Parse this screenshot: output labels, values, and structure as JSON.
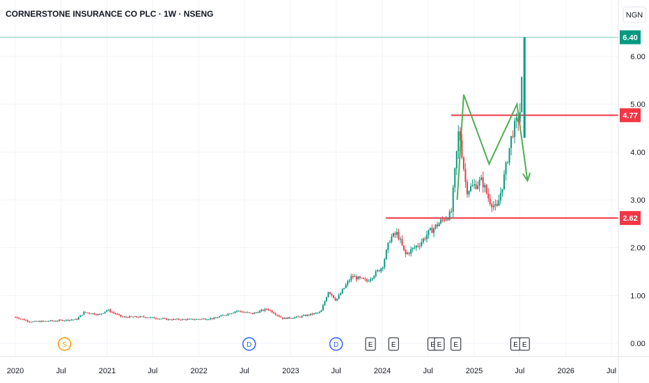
{
  "header": {
    "title": "CORNERSTONE INSURANCE CO PLC · 1W · NSENG",
    "currency": "NGN"
  },
  "colors": {
    "up": "#089981",
    "down": "#f23645",
    "line": "#f23645",
    "pattern": "#4caf50",
    "last_price": "#089981",
    "grid": "#f0f3fa"
  },
  "chart_data": {
    "type": "candlestick",
    "title": "CORNERSTONE INSURANCE CO PLC · 1W · NSENG",
    "y_axis": {
      "ticks": [
        "6.00",
        "5.00",
        "4.00",
        "3.00",
        "2.00",
        "1.00",
        "0.00"
      ],
      "min": -0.2,
      "max": 6.6
    },
    "x_axis": {
      "ticks": [
        "2020",
        "Jul",
        "2021",
        "Jul",
        "2022",
        "Jul",
        "2023",
        "Jul",
        "2024",
        "Jul",
        "2025",
        "Jul",
        "2026",
        "Jul"
      ],
      "start": "2020-01-01",
      "end": "2026-07-01"
    },
    "series_close_points": [
      [
        "2020-01-01",
        0.55
      ],
      [
        "2020-03-01",
        0.45
      ],
      [
        "2020-06-01",
        0.47
      ],
      [
        "2020-09-01",
        0.5
      ],
      [
        "2020-10-01",
        0.65
      ],
      [
        "2020-12-01",
        0.6
      ],
      [
        "2021-01-01",
        0.7
      ],
      [
        "2021-03-01",
        0.55
      ],
      [
        "2021-06-01",
        0.55
      ],
      [
        "2021-09-01",
        0.5
      ],
      [
        "2021-12-01",
        0.5
      ],
      [
        "2022-03-01",
        0.52
      ],
      [
        "2022-06-01",
        0.68
      ],
      [
        "2022-08-01",
        0.62
      ],
      [
        "2022-10-01",
        0.72
      ],
      [
        "2022-12-01",
        0.52
      ],
      [
        "2023-02-01",
        0.55
      ],
      [
        "2023-05-01",
        0.65
      ],
      [
        "2023-06-01",
        1.1
      ],
      [
        "2023-07-01",
        0.9
      ],
      [
        "2023-09-01",
        1.4
      ],
      [
        "2023-11-01",
        1.3
      ],
      [
        "2024-01-01",
        1.6
      ],
      [
        "2024-02-01",
        2.2
      ],
      [
        "2024-03-01",
        2.3
      ],
      [
        "2024-04-01",
        1.85
      ],
      [
        "2024-06-01",
        2.1
      ],
      [
        "2024-07-01",
        2.3
      ],
      [
        "2024-09-01",
        2.6
      ],
      [
        "2024-10-01",
        2.7
      ],
      [
        "2024-11-01",
        4.5
      ],
      [
        "2024-12-01",
        3.2
      ],
      [
        "2025-02-01",
        3.4
      ],
      [
        "2025-03-01",
        3.0
      ],
      [
        "2025-04-01",
        2.8
      ],
      [
        "2025-05-01",
        3.5
      ],
      [
        "2025-06-01",
        4.4
      ],
      [
        "2025-07-01",
        4.77
      ],
      [
        "2025-07-20",
        6.4
      ]
    ],
    "horizontal_levels": [
      {
        "value": 4.77,
        "from": "2024-10-01",
        "label": "4.77"
      },
      {
        "value": 2.62,
        "from": "2024-01-15",
        "label": "2.62"
      }
    ],
    "pattern_path": [
      [
        "2024-10-25",
        3.0
      ],
      [
        "2024-11-20",
        5.2
      ],
      [
        "2025-03-01",
        3.75
      ],
      [
        "2025-06-20",
        5.0
      ],
      [
        "2025-08-01",
        3.4
      ]
    ],
    "last_price": {
      "value": 6.4,
      "label": "6.40"
    },
    "events": [
      {
        "date": "2020-07-15",
        "label": "S",
        "kind": "split"
      },
      {
        "date": "2022-07-20",
        "label": "D",
        "kind": "dividend"
      },
      {
        "date": "2023-07-01",
        "label": "D",
        "kind": "dividend"
      },
      {
        "date": "2023-11-15",
        "label": "E",
        "kind": "earnings"
      },
      {
        "date": "2024-02-15",
        "label": "E",
        "kind": "earnings"
      },
      {
        "date": "2024-07-20",
        "label": "E",
        "kind": "earnings"
      },
      {
        "date": "2024-08-15",
        "label": "E",
        "kind": "earnings"
      },
      {
        "date": "2024-10-20",
        "label": "E",
        "kind": "earnings"
      },
      {
        "date": "2025-06-15",
        "label": "E",
        "kind": "earnings"
      },
      {
        "date": "2025-07-20",
        "label": "E",
        "kind": "earnings"
      }
    ]
  }
}
